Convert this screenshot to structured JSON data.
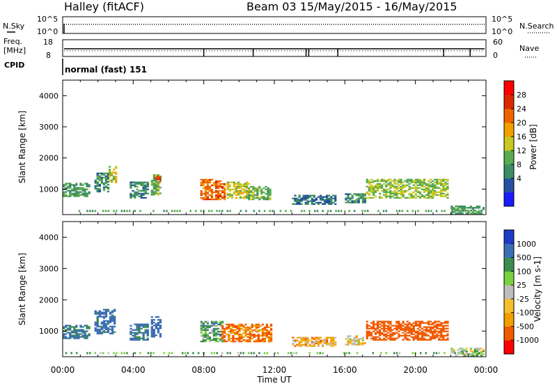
{
  "header": {
    "station": "Halley (fitACF)",
    "beam_date": "Beam 03 15/May/2015 - 16/May/2015"
  },
  "small_panels": {
    "nsky": {
      "label": "N.Sky",
      "top_tick": "10^5",
      "bottom_tick": "10^0",
      "right_label": "N.Search",
      "right_top_tick": "10^5",
      "right_bottom_tick": "10^0"
    },
    "freq": {
      "label_top": "Freq.",
      "label_bottom": "[MHz]",
      "top_tick": "18",
      "bottom_tick": "8",
      "right_label": "Nave",
      "right_top_tick": "60",
      "right_bottom_tick": "0"
    },
    "cpid": {
      "label": "CPID",
      "value": "normal (fast) 151"
    }
  },
  "colors": {
    "power_scale": [
      "#1a1aff",
      "#2850a0",
      "#3c8c64",
      "#5aaa50",
      "#c8c820",
      "#f0a000",
      "#f06400",
      "#dc2800",
      "#ff0000"
    ],
    "velocity_scale": [
      "#ff0000",
      "#f05a00",
      "#f0a000",
      "#f5c030",
      "#bebebe",
      "#78d23c",
      "#3c8c50",
      "#3c6eb4",
      "#1e3cc8"
    ]
  },
  "chart_data": [
    {
      "type": "heatmap",
      "title": "Power",
      "ylabel": "Slant Range [km]",
      "xlabel": "",
      "ylim": [
        180,
        4500
      ],
      "y_ticks": [
        "4000",
        "3000",
        "2000",
        "1000"
      ],
      "colorbar": {
        "label": "Power [dB]",
        "ticks": [
          "28",
          "24",
          "20",
          "16",
          "12",
          "8",
          "4"
        ],
        "range": [
          0,
          32
        ]
      },
      "regions": [
        {
          "t": [
            0.0,
            1.5
          ],
          "r": [
            750,
            1200
          ],
          "value": 12
        },
        {
          "t": [
            1.8,
            2.6
          ],
          "r": [
            900,
            1500
          ],
          "value": 10
        },
        {
          "t": [
            2.6,
            3.0
          ],
          "r": [
            1200,
            1700
          ],
          "value": 18
        },
        {
          "t": [
            3.8,
            4.8
          ],
          "r": [
            700,
            1200
          ],
          "value": 10
        },
        {
          "t": [
            5.0,
            5.6
          ],
          "r": [
            800,
            1450
          ],
          "value": 14
        },
        {
          "t": [
            5.2,
            5.5
          ],
          "r": [
            1200,
            1400
          ],
          "value": 28
        },
        {
          "t": [
            7.8,
            9.2
          ],
          "r": [
            650,
            1300
          ],
          "value": 26
        },
        {
          "t": [
            9.3,
            10.5
          ],
          "r": [
            700,
            1200
          ],
          "value": 18
        },
        {
          "t": [
            10.5,
            11.8
          ],
          "r": [
            650,
            1100
          ],
          "value": 14
        },
        {
          "t": [
            13.0,
            15.5
          ],
          "r": [
            500,
            800
          ],
          "value": 8
        },
        {
          "t": [
            16.0,
            17.2
          ],
          "r": [
            550,
            850
          ],
          "value": 10
        },
        {
          "t": [
            17.2,
            21.8
          ],
          "r": [
            700,
            1300
          ],
          "value": 16
        },
        {
          "t": [
            22.0,
            23.9
          ],
          "r": [
            200,
            450
          ],
          "value": 12
        }
      ]
    },
    {
      "type": "heatmap",
      "title": "Velocity",
      "ylabel": "Slant Range [km]",
      "xlabel": "Time UT",
      "ylim": [
        180,
        4500
      ],
      "y_ticks": [
        "4000",
        "3000",
        "2000",
        "1000"
      ],
      "x_ticks": [
        "00:00",
        "04:00",
        "08:00",
        "12:00",
        "16:00",
        "20:00",
        "00:00"
      ],
      "colorbar": {
        "label": "Velocity [m s-1]",
        "ticks": [
          "1000",
          "500",
          "100",
          "25",
          "-25",
          "-100",
          "-500",
          "-1000"
        ]
      },
      "regions": [
        {
          "t": [
            0.0,
            1.5
          ],
          "r": [
            750,
            1200
          ],
          "value": 120
        },
        {
          "t": [
            1.8,
            3.0
          ],
          "r": [
            900,
            1700
          ],
          "value": 150
        },
        {
          "t": [
            3.8,
            4.8
          ],
          "r": [
            700,
            1200
          ],
          "value": 120
        },
        {
          "t": [
            5.0,
            5.6
          ],
          "r": [
            800,
            1450
          ],
          "value": 200
        },
        {
          "t": [
            7.8,
            9.0
          ],
          "r": [
            650,
            1300
          ],
          "value": 60
        },
        {
          "t": [
            9.0,
            11.8
          ],
          "r": [
            650,
            1200
          ],
          "value": -120
        },
        {
          "t": [
            13.0,
            15.5
          ],
          "r": [
            500,
            800
          ],
          "value": -60
        },
        {
          "t": [
            16.0,
            17.2
          ],
          "r": [
            550,
            850
          ],
          "value": -20
        },
        {
          "t": [
            17.2,
            21.8
          ],
          "r": [
            700,
            1300
          ],
          "value": -300
        },
        {
          "t": [
            22.0,
            23.9
          ],
          "r": [
            200,
            450
          ],
          "value": 10
        }
      ]
    }
  ]
}
